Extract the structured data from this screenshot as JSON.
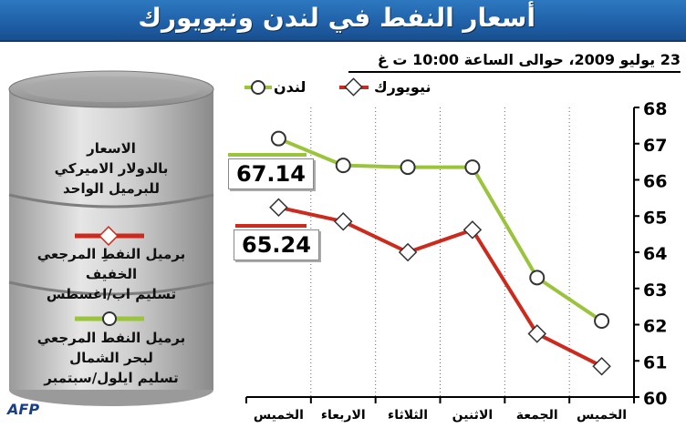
{
  "header": {
    "title": "أسعار النفط في لندن ونيويورك",
    "subtitle": "23 يوليو 2009، حوالى الساعة 10:00 ت غ"
  },
  "barrel": {
    "units_text": [
      "الاسعار",
      "بالدولار الاميركي",
      "للبرميل الواحد"
    ],
    "light_crude_text": [
      "برميل النفطِ المرجعي الخفيف",
      "تسليم اب/اغسطس"
    ],
    "north_sea_text": [
      "برميل النفط المرجعي",
      "لبحر الشمال",
      "تسليم ايلول/سبتمبر"
    ]
  },
  "value_boxes": {
    "london": "67.14",
    "newyork": "65.24"
  },
  "source": "AFP",
  "colors": {
    "london": "#99c43c",
    "newyork": "#cc2a1c",
    "title_bg": "#1f5fa6"
  },
  "chart_data": {
    "type": "line",
    "categories": [
      "الخميس",
      "الاربعاء",
      "الثلاثاء",
      "الاثنين",
      "الجمعة",
      "الخميس"
    ],
    "series": [
      {
        "name": "لندن",
        "marker": "circle",
        "values": [
          67.14,
          66.4,
          66.35,
          66.35,
          63.3,
          62.1
        ]
      },
      {
        "name": "نيويورك",
        "marker": "diamond",
        "values": [
          65.24,
          64.85,
          64.0,
          64.62,
          61.75,
          60.85
        ]
      }
    ],
    "y_ticks": [
      "60",
      "61",
      "62",
      "63",
      "64",
      "65",
      "66",
      "67",
      "68"
    ],
    "ylim": [
      60,
      68
    ],
    "grid": "vertical",
    "legend": "top"
  }
}
